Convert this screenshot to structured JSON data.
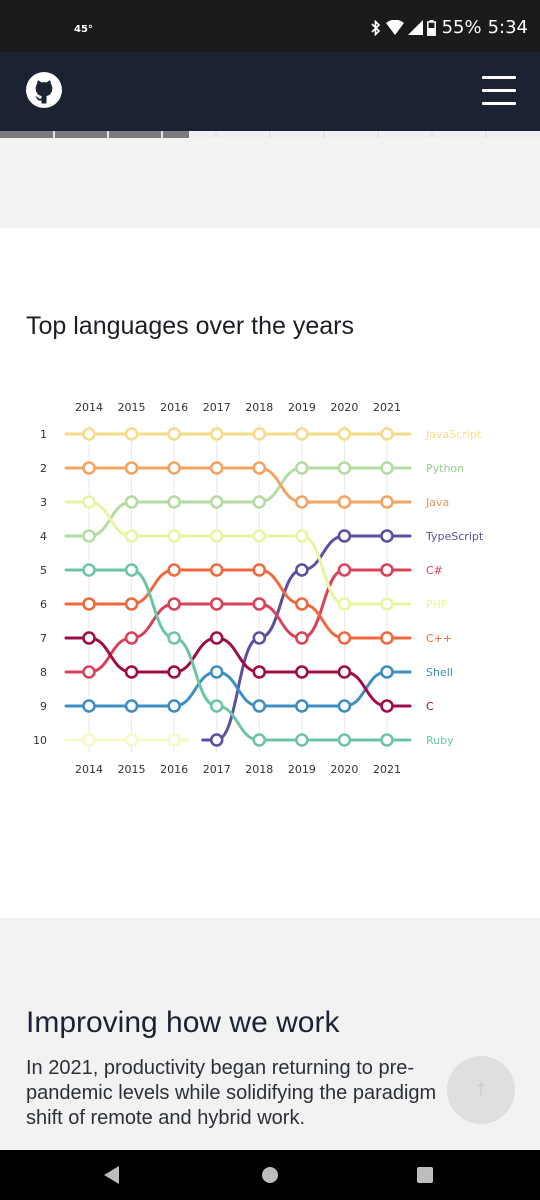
{
  "status_bar": {
    "temperature": "45°",
    "battery": "55%",
    "time": "5:34",
    "icons": [
      "bluetooth-icon",
      "wifi-icon",
      "signal-icon",
      "battery-icon"
    ]
  },
  "header": {
    "logo": "github-logo-icon",
    "menu": "hamburger-menu-icon",
    "colors": {
      "background": "#1b2333"
    }
  },
  "progress": {
    "fraction": 0.35,
    "segments": 10
  },
  "main": {
    "title": "Top languages over the years"
  },
  "chart_data": {
    "type": "line",
    "title": "Top languages over the years",
    "x": [
      2014,
      2015,
      2016,
      2017,
      2018,
      2019,
      2020,
      2021
    ],
    "y_ticks": [
      1,
      2,
      3,
      4,
      5,
      6,
      7,
      8,
      9,
      10
    ],
    "y_axis": "rank (1 at top)",
    "series": [
      {
        "name": "JavaScript",
        "color": "#f7dc87",
        "label_color": "#f7dc87",
        "ranks": [
          1,
          1,
          1,
          1,
          1,
          1,
          1,
          1
        ]
      },
      {
        "name": "Python",
        "color": "#b2dca0",
        "label_color": "#9bcf8c",
        "ranks": [
          4,
          3,
          3,
          3,
          3,
          2,
          2,
          2
        ]
      },
      {
        "name": "Java",
        "color": "#f4a460",
        "label_color": "#e6955a",
        "ranks": [
          2,
          2,
          2,
          2,
          2,
          3,
          3,
          3
        ]
      },
      {
        "name": "TypeScript",
        "color": "#5b4fa0",
        "label_color": "#5b4fa0",
        "ranks": [
          null,
          null,
          null,
          10,
          7,
          5,
          4,
          4
        ]
      },
      {
        "name": "C#",
        "color": "#d9435a",
        "label_color": "#d9435a",
        "ranks": [
          8,
          7,
          6,
          6,
          6,
          7,
          5,
          5
        ]
      },
      {
        "name": "PHP",
        "color": "#e8f5a0",
        "label_color": "#e8f5a0",
        "ranks": [
          3,
          4,
          4,
          4,
          4,
          4,
          6,
          6
        ]
      },
      {
        "name": "C++",
        "color": "#ee6a3c",
        "label_color": "#ee6a3c",
        "ranks": [
          6,
          6,
          5,
          5,
          5,
          6,
          7,
          7
        ]
      },
      {
        "name": "Shell",
        "color": "#3d8ec1",
        "label_color": "#3d8ec1",
        "ranks": [
          9,
          9,
          9,
          8,
          9,
          9,
          9,
          8
        ]
      },
      {
        "name": "C",
        "color": "#9e0b46",
        "label_color": "#9e0b46",
        "ranks": [
          7,
          8,
          8,
          7,
          8,
          8,
          8,
          9
        ]
      },
      {
        "name": "Ruby",
        "color": "#6cc5a4",
        "label_color": "#6cc5a4",
        "ranks": [
          5,
          5,
          7,
          9,
          10,
          10,
          10,
          10
        ]
      },
      {
        "name": "",
        "color": "#f7fac8",
        "label_color": "#f7fac8",
        "ranks": [
          10,
          10,
          10,
          null,
          null,
          null,
          null,
          null
        ]
      }
    ],
    "grid": false,
    "legend": "right (labels at line ends)"
  },
  "lower": {
    "heading": "Improving how we work",
    "body_lines": [
      "In 2021, productivity began returning to pre-",
      "pandemic levels while solidifying the paradigm",
      "shift of remote and hybrid work."
    ],
    "scroll_top_icon": "arrow-up-icon"
  },
  "nav_bar": {
    "icons": [
      "back-icon",
      "home-icon",
      "recents-icon"
    ]
  }
}
